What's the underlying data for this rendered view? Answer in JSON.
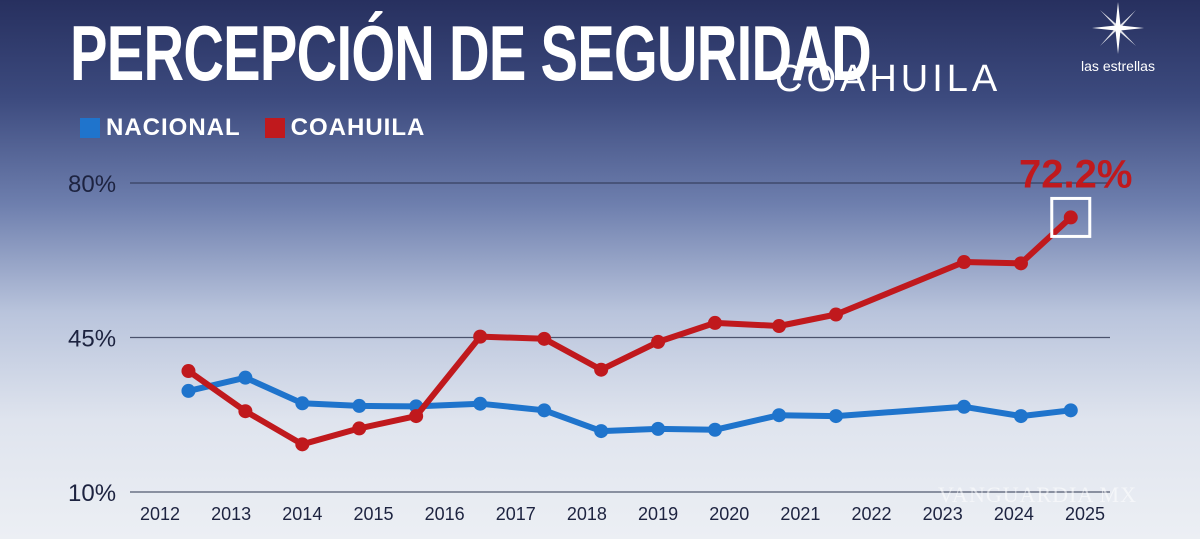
{
  "header": {
    "title": "PERCEPCIÓN DE SEGURIDAD",
    "subtitle": "COAHUILA"
  },
  "brand": {
    "logo_text": "las estrellas",
    "logo_icon": "star-compass-icon"
  },
  "watermark": "VANGUARDIA MX",
  "chart_data": {
    "type": "line",
    "title": "PERCEPCIÓN DE SEGURIDAD",
    "subtitle": "COAHUILA",
    "xlabel": "",
    "ylabel": "",
    "categories": [
      "2012",
      "2013",
      "2014",
      "2015",
      "2016",
      "2017",
      "2018",
      "2019",
      "2020",
      "2021",
      "2022",
      "2023",
      "2024",
      "2025"
    ],
    "y_ticks": [
      "80%",
      "45%",
      "10%"
    ],
    "y_tick_values": [
      80,
      45,
      10
    ],
    "ylim": [
      10,
      80
    ],
    "grid": true,
    "legend_position": "top-left",
    "series": [
      {
        "name": "NACIONAL",
        "color": "#1f74cc",
        "x": [
          2012.4,
          2013.2,
          2014.0,
          2014.8,
          2015.6,
          2016.5,
          2017.4,
          2018.2,
          2019.0,
          2019.8,
          2020.7,
          2021.5,
          2023.3,
          2024.1,
          2024.8
        ],
        "values": [
          32.9,
          35.9,
          30.1,
          29.5,
          29.4,
          30.0,
          28.5,
          23.8,
          24.3,
          24.1,
          27.4,
          27.2,
          29.3,
          27.2,
          28.5
        ]
      },
      {
        "name": "COAHUILA",
        "color": "#c0191d",
        "x": [
          2012.4,
          2013.2,
          2014.0,
          2014.8,
          2015.6,
          2016.5,
          2017.4,
          2018.2,
          2019.0,
          2019.8,
          2020.7,
          2021.5,
          2023.3,
          2024.1,
          2024.8
        ],
        "values": [
          37.4,
          28.3,
          20.8,
          24.4,
          27.2,
          45.2,
          44.7,
          37.7,
          44.0,
          48.3,
          47.6,
          50.2,
          62.1,
          61.8,
          72.2
        ]
      }
    ],
    "annotations": [
      {
        "series": "COAHUILA",
        "text": "72.2%",
        "at_index": 14
      }
    ]
  }
}
